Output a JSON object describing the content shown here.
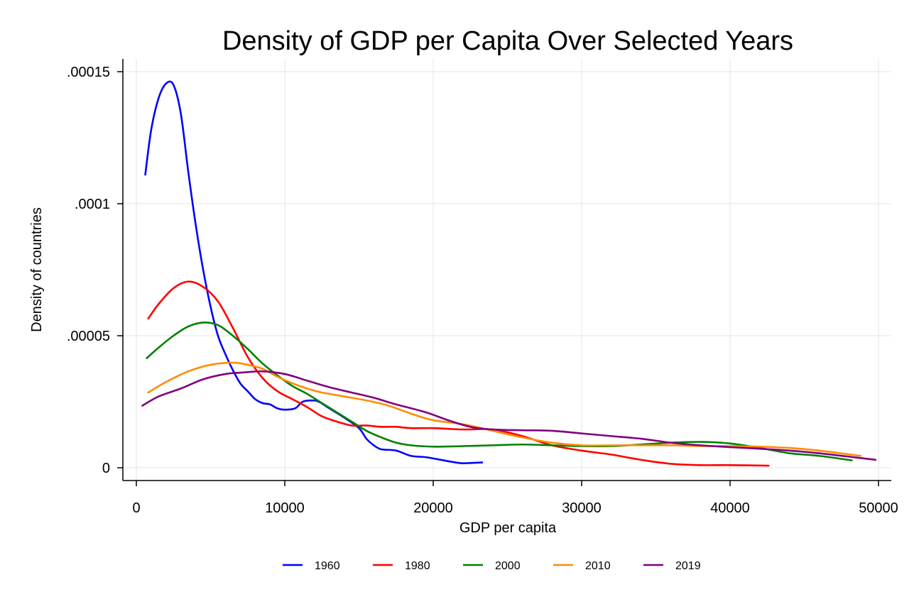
{
  "chart_data": {
    "type": "line",
    "title": "Density of GDP per Capita Over Selected Years",
    "xlabel": "GDP per capita",
    "ylabel": "Density of countries",
    "xlim": [
      0,
      50000
    ],
    "ylim": [
      0,
      0.00015
    ],
    "x_ticks": [
      0,
      10000,
      20000,
      30000,
      40000,
      50000
    ],
    "x_tick_labels": [
      "0",
      "10000",
      "20000",
      "30000",
      "40000",
      "50000"
    ],
    "y_ticks": [
      0,
      5e-05,
      0.0001,
      0.00015
    ],
    "y_tick_labels": [
      "0",
      ".00005",
      ".0001",
      ".00015"
    ],
    "grid": true,
    "legend_position": "bottom",
    "series": [
      {
        "name": "1960",
        "color": "#0000ff",
        "points": [
          [
            600,
            0.000111
          ],
          [
            1000,
            0.000128
          ],
          [
            1500,
            0.00014
          ],
          [
            2000,
            0.0001455
          ],
          [
            2500,
            0.000145
          ],
          [
            3000,
            0.000134
          ],
          [
            3500,
            0.000112
          ],
          [
            4000,
            9.2e-05
          ],
          [
            4500,
            7.5e-05
          ],
          [
            5000,
            6.1e-05
          ],
          [
            5500,
            5e-05
          ],
          [
            6000,
            4.3e-05
          ],
          [
            6500,
            3.7e-05
          ],
          [
            7000,
            3.2e-05
          ],
          [
            7500,
            2.9e-05
          ],
          [
            8000,
            2.6e-05
          ],
          [
            8500,
            2.45e-05
          ],
          [
            9000,
            2.4e-05
          ],
          [
            9500,
            2.25e-05
          ],
          [
            10000,
            2.2e-05
          ],
          [
            10700,
            2.25e-05
          ],
          [
            11200,
            2.5e-05
          ],
          [
            11800,
            2.55e-05
          ],
          [
            12300,
            2.5e-05
          ],
          [
            13000,
            2.25e-05
          ],
          [
            14000,
            1.9e-05
          ],
          [
            15000,
            1.5e-05
          ],
          [
            15500,
            1.1e-05
          ],
          [
            16000,
            8.5e-06
          ],
          [
            16500,
            7e-06
          ],
          [
            17500,
            6.5e-06
          ],
          [
            18500,
            4.5e-06
          ],
          [
            19500,
            4e-06
          ],
          [
            20500,
            3e-06
          ],
          [
            21500,
            2e-06
          ],
          [
            22000,
            1.7e-06
          ],
          [
            22500,
            1.8e-06
          ],
          [
            23300,
            2e-06
          ]
        ]
      },
      {
        "name": "1980",
        "color": "#ff0000",
        "points": [
          [
            800,
            5.65e-05
          ],
          [
            1500,
            6.2e-05
          ],
          [
            2500,
            6.8e-05
          ],
          [
            3500,
            7.05e-05
          ],
          [
            4500,
            6.85e-05
          ],
          [
            5500,
            6.3e-05
          ],
          [
            6500,
            5.3e-05
          ],
          [
            7500,
            4.2e-05
          ],
          [
            8500,
            3.4e-05
          ],
          [
            9500,
            2.9e-05
          ],
          [
            10500,
            2.6e-05
          ],
          [
            11500,
            2.3e-05
          ],
          [
            12500,
            1.95e-05
          ],
          [
            13500,
            1.75e-05
          ],
          [
            14500,
            1.6e-05
          ],
          [
            15500,
            1.6e-05
          ],
          [
            16500,
            1.55e-05
          ],
          [
            17500,
            1.55e-05
          ],
          [
            18500,
            1.5e-05
          ],
          [
            20000,
            1.5e-05
          ],
          [
            22000,
            1.45e-05
          ],
          [
            24000,
            1.45e-05
          ],
          [
            26000,
            1.2e-05
          ],
          [
            28000,
            8.5e-06
          ],
          [
            30000,
            6.5e-06
          ],
          [
            32000,
            5e-06
          ],
          [
            34000,
            3e-06
          ],
          [
            36000,
            1.5e-06
          ],
          [
            38000,
            1e-06
          ],
          [
            40000,
            1e-06
          ],
          [
            42600,
            8e-07
          ]
        ]
      },
      {
        "name": "2000",
        "color": "#008000",
        "points": [
          [
            700,
            4.15e-05
          ],
          [
            1500,
            4.55e-05
          ],
          [
            2500,
            5e-05
          ],
          [
            3500,
            5.35e-05
          ],
          [
            4500,
            5.5e-05
          ],
          [
            5500,
            5.4e-05
          ],
          [
            6500,
            5e-05
          ],
          [
            7500,
            4.5e-05
          ],
          [
            8500,
            3.95e-05
          ],
          [
            9500,
            3.5e-05
          ],
          [
            10500,
            3.1e-05
          ],
          [
            11500,
            2.8e-05
          ],
          [
            12500,
            2.45e-05
          ],
          [
            13500,
            2.1e-05
          ],
          [
            14500,
            1.75e-05
          ],
          [
            15500,
            1.4e-05
          ],
          [
            16500,
            1.15e-05
          ],
          [
            17500,
            9.5e-06
          ],
          [
            18500,
            8.5e-06
          ],
          [
            20000,
            8e-06
          ],
          [
            22000,
            8.2e-06
          ],
          [
            24000,
            8.5e-06
          ],
          [
            26000,
            8.8e-06
          ],
          [
            28000,
            8.5e-06
          ],
          [
            30000,
            8.2e-06
          ],
          [
            32000,
            8.2e-06
          ],
          [
            34000,
            8.8e-06
          ],
          [
            36000,
            9.5e-06
          ],
          [
            38000,
            9.8e-06
          ],
          [
            40000,
            9.2e-06
          ],
          [
            42000,
            7.5e-06
          ],
          [
            44000,
            5.5e-06
          ],
          [
            46000,
            4.5e-06
          ],
          [
            48200,
            2.8e-06
          ]
        ]
      },
      {
        "name": "2010",
        "color": "#ff8c00",
        "points": [
          [
            800,
            2.85e-05
          ],
          [
            2000,
            3.25e-05
          ],
          [
            3500,
            3.65e-05
          ],
          [
            5000,
            3.9e-05
          ],
          [
            6500,
            3.98e-05
          ],
          [
            7500,
            3.9e-05
          ],
          [
            8500,
            3.75e-05
          ],
          [
            9500,
            3.45e-05
          ],
          [
            10500,
            3.2e-05
          ],
          [
            11500,
            3e-05
          ],
          [
            12500,
            2.85e-05
          ],
          [
            14000,
            2.7e-05
          ],
          [
            15500,
            2.55e-05
          ],
          [
            17000,
            2.35e-05
          ],
          [
            18500,
            2.05e-05
          ],
          [
            20000,
            1.8e-05
          ],
          [
            22000,
            1.65e-05
          ],
          [
            24000,
            1.4e-05
          ],
          [
            26000,
            1.15e-05
          ],
          [
            28000,
            9.5e-06
          ],
          [
            30000,
            8.5e-06
          ],
          [
            32000,
            8.5e-06
          ],
          [
            34000,
            8.5e-06
          ],
          [
            36000,
            8.5e-06
          ],
          [
            38000,
            8.2e-06
          ],
          [
            40000,
            8.2e-06
          ],
          [
            42000,
            8e-06
          ],
          [
            44000,
            7.5e-06
          ],
          [
            46000,
            6.5e-06
          ],
          [
            48800,
            4.5e-06
          ]
        ]
      },
      {
        "name": "2019",
        "color": "#800080",
        "points": [
          [
            400,
            2.35e-05
          ],
          [
            1500,
            2.7e-05
          ],
          [
            3000,
            3e-05
          ],
          [
            4500,
            3.35e-05
          ],
          [
            6000,
            3.55e-05
          ],
          [
            7000,
            3.6e-05
          ],
          [
            8500,
            3.65e-05
          ],
          [
            10000,
            3.55e-05
          ],
          [
            11500,
            3.3e-05
          ],
          [
            13000,
            3.05e-05
          ],
          [
            14500,
            2.85e-05
          ],
          [
            16000,
            2.65e-05
          ],
          [
            17500,
            2.4e-05
          ],
          [
            19500,
            2.1e-05
          ],
          [
            21000,
            1.8e-05
          ],
          [
            22500,
            1.55e-05
          ],
          [
            24000,
            1.45e-05
          ],
          [
            26000,
            1.42e-05
          ],
          [
            28000,
            1.4e-05
          ],
          [
            30000,
            1.3e-05
          ],
          [
            32000,
            1.2e-05
          ],
          [
            34000,
            1.1e-05
          ],
          [
            36000,
            9.5e-06
          ],
          [
            38000,
            8.5e-06
          ],
          [
            40000,
            7.8e-06
          ],
          [
            42000,
            7.2e-06
          ],
          [
            44000,
            6.5e-06
          ],
          [
            46000,
            5.5e-06
          ],
          [
            48000,
            4.2e-06
          ],
          [
            49800,
            3e-06
          ]
        ]
      }
    ]
  }
}
